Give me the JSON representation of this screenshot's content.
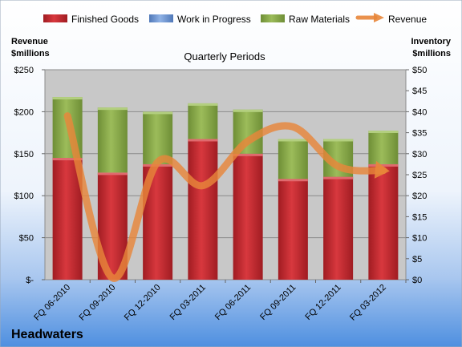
{
  "company": "Headwaters",
  "colors": {
    "finished": "#c0282e",
    "wip": "#6f98d8",
    "raw": "#8aaa4a",
    "revenue": "#e8863a",
    "plot_bg": "#c8c8c8"
  },
  "chart_data": {
    "type": "bar",
    "subtitle": "Quarterly Periods",
    "y_left_label_1": "Revenue",
    "y_left_label_2": "$millions",
    "y_right_label_1": "Inventory",
    "y_right_label_2": "$millions",
    "ylim_left": [
      0,
      250
    ],
    "ylim_right": [
      0,
      50
    ],
    "left_ticks": [
      "$-",
      "$50",
      "$100",
      "$150",
      "$200",
      "$250"
    ],
    "right_ticks": [
      "$0",
      "$5",
      "$10",
      "$15",
      "$20",
      "$25",
      "$30",
      "$35",
      "$40",
      "$45",
      "$50"
    ],
    "grid": true,
    "legend_position": "top",
    "categories": [
      "FQ 06-2010",
      "FQ 09-2010",
      "FQ 12-2010",
      "FQ 03-2011",
      "FQ 06-2011",
      "FQ 09-2011",
      "FQ 12-2011",
      "FQ 03-2012"
    ],
    "series": [
      {
        "name": "Finished Goods",
        "type": "bar",
        "axis": "right",
        "values": [
          29.0,
          25.5,
          27.5,
          33.5,
          30.0,
          24.0,
          24.5,
          27.5
        ]
      },
      {
        "name": "Work in Progress",
        "type": "bar",
        "axis": "right",
        "values": [
          0,
          0,
          0,
          0,
          0,
          0,
          0,
          0
        ]
      },
      {
        "name": "Raw Materials",
        "type": "bar",
        "axis": "right",
        "values": [
          14.5,
          15.5,
          12.5,
          8.5,
          10.5,
          9.5,
          9.0,
          8.0
        ]
      },
      {
        "name": "Revenue",
        "type": "line",
        "axis": "left",
        "values": [
          195,
          2,
          140,
          112,
          165,
          182,
          135,
          130
        ]
      }
    ]
  }
}
